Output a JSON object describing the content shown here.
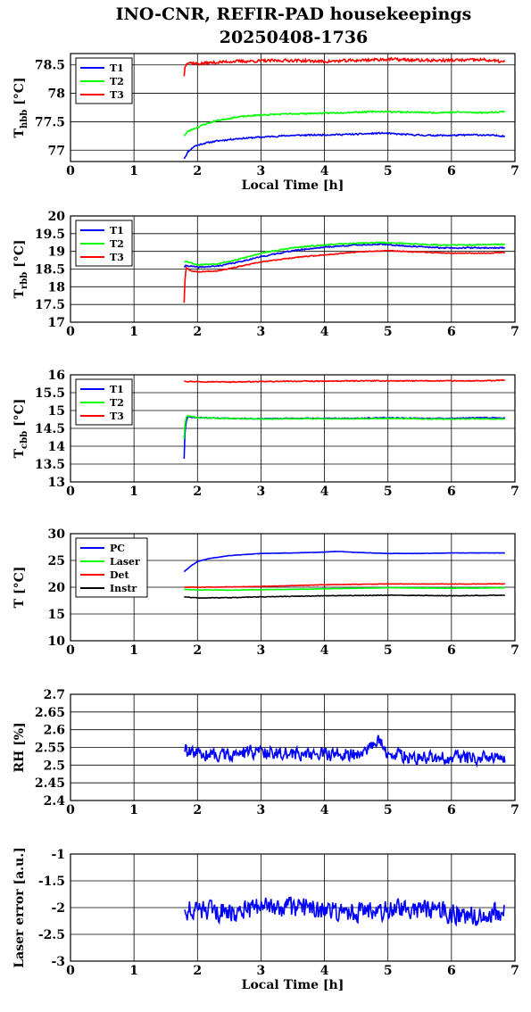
{
  "title_line1": "INO-CNR, REFIR-PAD housekeepings",
  "title_line2": "20250408-1736",
  "chart_data": [
    {
      "type": "line",
      "ylabel_main": "T",
      "ylabel_sub": "hbb",
      "ylabel_unit": " [°C]",
      "xlabel": "Local Time [h]",
      "xlim": [
        0,
        7
      ],
      "ylim": [
        76.8,
        78.7
      ],
      "xticks": [
        0,
        1,
        2,
        3,
        4,
        5,
        6,
        7
      ],
      "xtick_labels": [
        "0",
        "1",
        "2",
        "3",
        "4",
        "5",
        "6",
        "7"
      ],
      "yticks": [
        77,
        77.5,
        78,
        78.5
      ],
      "ytick_labels": [
        "77",
        "77.5",
        "78",
        "78.5"
      ],
      "legend_position": "top-left",
      "grid": true,
      "series": [
        {
          "name": "T1",
          "color": "#0000ff",
          "noise": 0.015,
          "seed": 11,
          "x": [
            1.79,
            1.85,
            1.95,
            2.1,
            2.3,
            2.6,
            3.0,
            3.5,
            4.0,
            4.5,
            4.9,
            5.2,
            5.6,
            6.0,
            6.4,
            6.85
          ],
          "y": [
            76.85,
            76.97,
            77.07,
            77.12,
            77.16,
            77.2,
            77.23,
            77.26,
            77.27,
            77.28,
            77.3,
            77.28,
            77.26,
            77.26,
            77.27,
            77.25
          ]
        },
        {
          "name": "T2",
          "color": "#00ff00",
          "noise": 0.015,
          "seed": 23,
          "x": [
            1.79,
            1.85,
            1.95,
            2.1,
            2.3,
            2.6,
            3.0,
            3.5,
            4.0,
            4.5,
            4.9,
            5.3,
            5.7,
            6.1,
            6.5,
            6.85
          ],
          "y": [
            77.25,
            77.33,
            77.38,
            77.45,
            77.52,
            77.58,
            77.62,
            77.64,
            77.65,
            77.67,
            77.68,
            77.67,
            77.66,
            77.67,
            77.66,
            77.68
          ]
        },
        {
          "name": "T3",
          "color": "#ff0000",
          "noise": 0.03,
          "seed": 37,
          "x": [
            1.79,
            1.8,
            1.83,
            2.0,
            2.5,
            3.0,
            3.5,
            4.0,
            4.5,
            5.0,
            5.5,
            6.0,
            6.5,
            6.85
          ],
          "y": [
            78.3,
            78.45,
            78.55,
            78.52,
            78.56,
            78.57,
            78.58,
            78.56,
            78.58,
            78.6,
            78.58,
            78.58,
            78.59,
            78.55
          ]
        }
      ]
    },
    {
      "type": "line",
      "ylabel_main": "T",
      "ylabel_sub": "rbb",
      "ylabel_unit": " [°C]",
      "xlabel": "",
      "xlim": [
        0,
        7
      ],
      "ylim": [
        17,
        20
      ],
      "xticks": [
        0,
        1,
        2,
        3,
        4,
        5,
        6,
        7
      ],
      "xtick_labels": [
        "0",
        "1",
        "2",
        "3",
        "4",
        "5",
        "6",
        "7"
      ],
      "yticks": [
        17,
        17.5,
        18,
        18.5,
        19,
        19.5,
        20
      ],
      "ytick_labels": [
        "17",
        "17.5",
        "18",
        "18.5",
        "19",
        "19.5",
        "20"
      ],
      "legend_position": "top-left",
      "grid": true,
      "series": [
        {
          "name": "T1",
          "color": "#0000ff",
          "noise": 0.02,
          "seed": 41,
          "x": [
            1.79,
            1.82,
            1.9,
            2.0,
            2.3,
            2.6,
            3.0,
            3.5,
            4.0,
            4.5,
            4.9,
            5.3,
            5.8,
            6.3,
            6.85
          ],
          "y": [
            18.55,
            18.6,
            18.58,
            18.55,
            18.58,
            18.68,
            18.85,
            19.02,
            19.12,
            19.18,
            19.2,
            19.15,
            19.1,
            19.1,
            19.1
          ]
        },
        {
          "name": "T2",
          "color": "#00ff00",
          "noise": 0.02,
          "seed": 53,
          "x": [
            1.79,
            1.82,
            1.9,
            2.0,
            2.3,
            2.6,
            3.0,
            3.5,
            4.0,
            4.5,
            4.9,
            5.3,
            5.8,
            6.3,
            6.85
          ],
          "y": [
            18.7,
            18.72,
            18.68,
            18.62,
            18.65,
            18.75,
            18.95,
            19.1,
            19.18,
            19.23,
            19.25,
            19.22,
            19.18,
            19.18,
            19.2
          ]
        },
        {
          "name": "T3",
          "color": "#ff0000",
          "noise": 0.015,
          "seed": 67,
          "x": [
            1.79,
            1.8,
            1.82,
            1.86,
            1.9,
            2.0,
            2.3,
            2.6,
            3.0,
            3.5,
            4.0,
            4.5,
            5.0,
            5.5,
            6.0,
            6.5,
            6.85
          ],
          "y": [
            17.55,
            18.1,
            18.55,
            18.5,
            18.45,
            18.42,
            18.45,
            18.55,
            18.7,
            18.82,
            18.9,
            18.98,
            19.02,
            18.98,
            18.95,
            18.95,
            18.97
          ]
        }
      ]
    },
    {
      "type": "line",
      "ylabel_main": "T",
      "ylabel_sub": "cbb",
      "ylabel_unit": " [°C]",
      "xlabel": "",
      "xlim": [
        0,
        7
      ],
      "ylim": [
        13,
        16
      ],
      "xticks": [
        0,
        1,
        2,
        3,
        4,
        5,
        6,
        7
      ],
      "xtick_labels": [
        "0",
        "1",
        "2",
        "3",
        "4",
        "5",
        "6",
        "7"
      ],
      "yticks": [
        13,
        13.5,
        14,
        14.5,
        15,
        15.5,
        16
      ],
      "ytick_labels": [
        "13",
        "13.5",
        "14",
        "14.5",
        "15",
        "15.5",
        "16"
      ],
      "legend_position": "top-left",
      "grid": true,
      "series": [
        {
          "name": "T1",
          "color": "#0000ff",
          "noise": 0.015,
          "seed": 71,
          "x": [
            1.79,
            1.8,
            1.82,
            1.85,
            2.0,
            2.5,
            3.0,
            3.5,
            4.0,
            4.5,
            5.0,
            5.5,
            6.0,
            6.5,
            6.85
          ],
          "y": [
            13.65,
            14.3,
            14.7,
            14.82,
            14.8,
            14.78,
            14.77,
            14.78,
            14.78,
            14.78,
            14.8,
            14.78,
            14.78,
            14.8,
            14.79
          ]
        },
        {
          "name": "T2",
          "color": "#00ff00",
          "noise": 0.015,
          "seed": 83,
          "x": [
            1.79,
            1.8,
            1.82,
            1.85,
            2.0,
            2.5,
            3.0,
            3.5,
            4.0,
            4.5,
            5.0,
            5.5,
            6.0,
            6.5,
            6.85
          ],
          "y": [
            14.2,
            14.55,
            14.8,
            14.85,
            14.8,
            14.78,
            14.76,
            14.77,
            14.77,
            14.77,
            14.78,
            14.77,
            14.76,
            14.77,
            14.76
          ]
        },
        {
          "name": "T3",
          "color": "#ff0000",
          "noise": 0.015,
          "seed": 97,
          "x": [
            1.79,
            2.0,
            2.5,
            3.0,
            3.5,
            4.0,
            4.5,
            5.0,
            5.5,
            6.0,
            6.5,
            6.85
          ],
          "y": [
            15.82,
            15.81,
            15.8,
            15.81,
            15.82,
            15.82,
            15.83,
            15.83,
            15.83,
            15.83,
            15.83,
            15.85
          ]
        }
      ]
    },
    {
      "type": "line",
      "ylabel_main": "T [°C]",
      "ylabel_sub": "",
      "ylabel_unit": "",
      "xlabel": "",
      "xlim": [
        0,
        7
      ],
      "ylim": [
        10,
        30
      ],
      "xticks": [
        0,
        1,
        2,
        3,
        4,
        5,
        6,
        7
      ],
      "xtick_labels": [
        "0",
        "1",
        "2",
        "3",
        "4",
        "5",
        "6",
        "7"
      ],
      "yticks": [
        10,
        15,
        20,
        25,
        30
      ],
      "ytick_labels": [
        "10",
        "15",
        "20",
        "25",
        "30"
      ],
      "legend_position": "top-left",
      "grid": true,
      "series": [
        {
          "name": "PC",
          "color": "#0000ff",
          "noise": 0.03,
          "seed": 101,
          "x": [
            1.79,
            1.9,
            2.0,
            2.2,
            2.5,
            3.0,
            3.5,
            4.0,
            4.2,
            4.5,
            5.0,
            5.5,
            6.0,
            6.5,
            6.85
          ],
          "y": [
            22.9,
            24.0,
            24.8,
            25.4,
            25.9,
            26.3,
            26.4,
            26.55,
            26.7,
            26.5,
            26.3,
            26.3,
            26.4,
            26.4,
            26.4
          ]
        },
        {
          "name": "Laser",
          "color": "#00ff00",
          "noise": 0.05,
          "seed": 113,
          "x": [
            1.79,
            2.0,
            2.5,
            3.0,
            3.5,
            4.0,
            4.5,
            5.0,
            5.5,
            6.0,
            6.5,
            6.85
          ],
          "y": [
            19.6,
            19.5,
            19.45,
            19.55,
            19.6,
            19.7,
            19.8,
            19.9,
            19.85,
            19.8,
            19.85,
            19.9
          ]
        },
        {
          "name": "Det",
          "color": "#ff0000",
          "noise": 0.05,
          "seed": 127,
          "x": [
            1.79,
            2.0,
            2.5,
            3.0,
            3.5,
            4.0,
            4.5,
            5.0,
            5.5,
            6.0,
            6.5,
            6.85
          ],
          "y": [
            20.0,
            20.0,
            20.05,
            20.15,
            20.3,
            20.45,
            20.55,
            20.6,
            20.6,
            20.6,
            20.6,
            20.65
          ]
        },
        {
          "name": "Instr",
          "color": "#000000",
          "noise": 0.06,
          "seed": 131,
          "x": [
            1.79,
            2.0,
            2.5,
            3.0,
            3.5,
            4.0,
            4.5,
            5.0,
            5.5,
            6.0,
            6.5,
            6.85
          ],
          "y": [
            18.2,
            18.0,
            18.05,
            18.2,
            18.3,
            18.4,
            18.45,
            18.5,
            18.45,
            18.4,
            18.45,
            18.5
          ]
        }
      ]
    },
    {
      "type": "line",
      "ylabel_main": "RH [%]",
      "ylabel_sub": "",
      "ylabel_unit": "",
      "xlabel": "",
      "xlim": [
        0,
        7
      ],
      "ylim": [
        2.4,
        2.7
      ],
      "xticks": [
        0,
        1,
        2,
        3,
        4,
        5,
        6,
        7
      ],
      "xtick_labels": [
        "0",
        "1",
        "2",
        "3",
        "4",
        "5",
        "6",
        "7"
      ],
      "yticks": [
        2.4,
        2.45,
        2.5,
        2.55,
        2.6,
        2.65,
        2.7
      ],
      "ytick_labels": [
        "2.4",
        "2.45",
        "2.5",
        "2.55",
        "2.6",
        "2.65",
        "2.7"
      ],
      "legend_position": "none",
      "grid": true,
      "series": [
        {
          "name": "",
          "color": "#0000ff",
          "noise": 0.022,
          "seed": 139,
          "x": [
            1.79,
            2.0,
            2.5,
            3.0,
            3.5,
            4.0,
            4.5,
            4.85,
            5.0,
            5.5,
            6.0,
            6.5,
            6.85
          ],
          "y": [
            2.54,
            2.53,
            2.53,
            2.54,
            2.53,
            2.53,
            2.53,
            2.57,
            2.53,
            2.52,
            2.52,
            2.52,
            2.52
          ]
        }
      ]
    },
    {
      "type": "line",
      "ylabel_main": "Laser error [a.u.]",
      "ylabel_sub": "",
      "ylabel_unit": "",
      "xlabel": "Local Time [h]",
      "xlim": [
        0,
        7
      ],
      "ylim": [
        -3,
        -1
      ],
      "xticks": [
        0,
        1,
        2,
        3,
        4,
        5,
        6,
        7
      ],
      "xtick_labels": [
        "0",
        "1",
        "2",
        "3",
        "4",
        "5",
        "6",
        "7"
      ],
      "yticks": [
        -3,
        -2.5,
        -2,
        -1.5,
        -1
      ],
      "ytick_labels": [
        "-3",
        "-2.5",
        "-2",
        "-1.5",
        "-1"
      ],
      "legend_position": "none",
      "grid": true,
      "series": [
        {
          "name": "",
          "color": "#0000ff",
          "noise": 0.22,
          "seed": 151,
          "x": [
            1.79,
            2.0,
            2.5,
            3.0,
            3.5,
            4.0,
            4.5,
            5.0,
            5.5,
            6.0,
            6.5,
            6.85
          ],
          "y": [
            -2.05,
            -2.05,
            -2.1,
            -2.0,
            -2.0,
            -2.05,
            -2.1,
            -2.05,
            -2.05,
            -2.1,
            -2.15,
            -2.05
          ]
        }
      ]
    }
  ]
}
